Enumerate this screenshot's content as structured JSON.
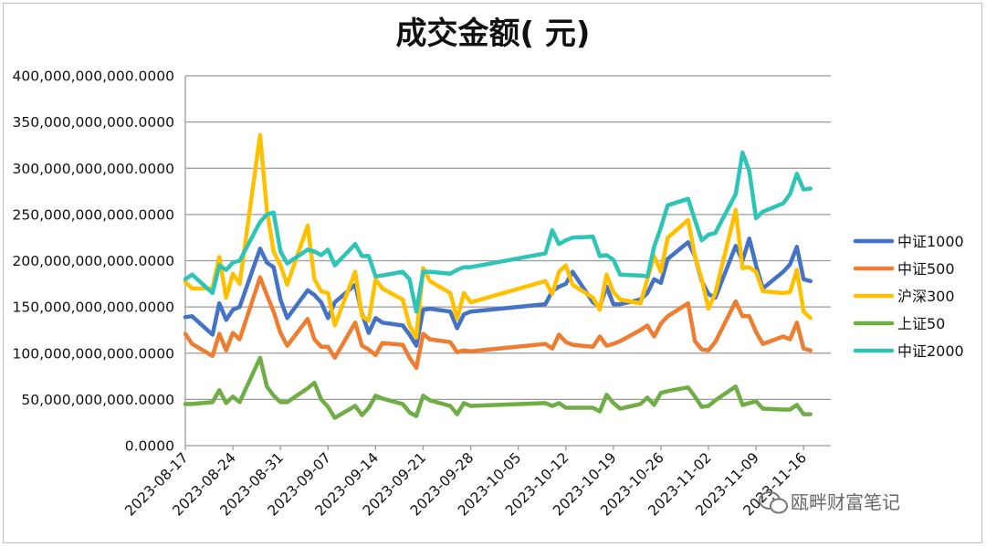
{
  "chart_data": {
    "type": "line",
    "title": "成交金额( 元)",
    "xlabel": "",
    "ylabel": "",
    "ylim": [
      0,
      400000000000
    ],
    "y_ticks": [
      0,
      50000000000,
      100000000000,
      150000000000,
      200000000000,
      250000000000,
      300000000000,
      350000000000,
      400000000000
    ],
    "y_tick_labels": [
      "0.0000",
      "50,000,000,000.0000",
      "100,000,000,000.0000",
      "150,000,000,000.0000",
      "200,000,000,000.0000",
      "250,000,000,000.0000",
      "300,000,000,000.0000",
      "350,000,000,000.0000",
      "400,000,000,000.0000"
    ],
    "xlim": [
      "2023-08-17",
      "2023-11-20"
    ],
    "x_ticks": [
      "2023-08-17",
      "2023-08-24",
      "2023-08-31",
      "2023-09-07",
      "2023-09-14",
      "2023-09-21",
      "2023-09-28",
      "2023-10-05",
      "2023-10-12",
      "2023-10-19",
      "2023-10-26",
      "2023-11-02",
      "2023-11-09",
      "2023-11-16"
    ],
    "grid": "horizontal",
    "legend_position": "right",
    "x": [
      "2023-08-17",
      "2023-08-18",
      "2023-08-21",
      "2023-08-22",
      "2023-08-23",
      "2023-08-24",
      "2023-08-25",
      "2023-08-28",
      "2023-08-29",
      "2023-08-30",
      "2023-08-31",
      "2023-09-01",
      "2023-09-04",
      "2023-09-05",
      "2023-09-06",
      "2023-09-07",
      "2023-09-08",
      "2023-09-11",
      "2023-09-12",
      "2023-09-13",
      "2023-09-14",
      "2023-09-15",
      "2023-09-18",
      "2023-09-19",
      "2023-09-20",
      "2023-09-21",
      "2023-09-22",
      "2023-09-25",
      "2023-09-26",
      "2023-09-27",
      "2023-09-28",
      "2023-10-09",
      "2023-10-10",
      "2023-10-11",
      "2023-10-12",
      "2023-10-13",
      "2023-10-16",
      "2023-10-17",
      "2023-10-18",
      "2023-10-19",
      "2023-10-20",
      "2023-10-23",
      "2023-10-24",
      "2023-10-25",
      "2023-10-26",
      "2023-10-27",
      "2023-10-30",
      "2023-10-31",
      "2023-11-01",
      "2023-11-02",
      "2023-11-03",
      "2023-11-06",
      "2023-11-07",
      "2023-11-08",
      "2023-11-09",
      "2023-11-10",
      "2023-11-13",
      "2023-11-14",
      "2023-11-15",
      "2023-11-16",
      "2023-11-17"
    ],
    "series": [
      {
        "name": "中证1000",
        "color": "#4472C4",
        "values": [
          139,
          140,
          120,
          154,
          136,
          147,
          150,
          213,
          198,
          193,
          158,
          138,
          168,
          163,
          155,
          138,
          155,
          174,
          143,
          122,
          138,
          133,
          130,
          120,
          108,
          147,
          148,
          145,
          127,
          142,
          145,
          153,
          167,
          172,
          175,
          188,
          155,
          150,
          172,
          153,
          153,
          158,
          165,
          180,
          176,
          202,
          220,
          205,
          178,
          164,
          160,
          216,
          200,
          224,
          195,
          170,
          188,
          196,
          215,
          180,
          178
        ]
      },
      {
        "name": "中证500",
        "color": "#ED7D31",
        "values": [
          121,
          110,
          97,
          121,
          103,
          122,
          115,
          182,
          163,
          145,
          122,
          108,
          137,
          115,
          107,
          107,
          95,
          133,
          108,
          104,
          98,
          111,
          109,
          95,
          84,
          121,
          115,
          112,
          101,
          103,
          102,
          110,
          105,
          120,
          112,
          109,
          107,
          118,
          108,
          110,
          113,
          125,
          130,
          118,
          132,
          140,
          154,
          113,
          104,
          103,
          112,
          156,
          140,
          140,
          123,
          110,
          118,
          115,
          133,
          105,
          103
        ]
      },
      {
        "name": "沪深300",
        "color": "#FFC000",
        "values": [
          177,
          170,
          170,
          204,
          160,
          186,
          175,
          336,
          255,
          210,
          195,
          174,
          238,
          180,
          167,
          165,
          130,
          188,
          140,
          135,
          180,
          170,
          158,
          130,
          117,
          192,
          178,
          165,
          137,
          165,
          155,
          178,
          164,
          188,
          195,
          174,
          160,
          147,
          185,
          166,
          158,
          154,
          180,
          205,
          188,
          225,
          244,
          205,
          180,
          148,
          165,
          255,
          192,
          193,
          188,
          167,
          165,
          166,
          190,
          145,
          138
        ]
      },
      {
        "name": "上证50",
        "color": "#70AD47",
        "values": [
          45,
          45,
          47,
          60,
          46,
          53,
          47,
          95,
          64,
          54,
          47,
          47,
          62,
          68,
          50,
          42,
          30,
          43,
          33,
          41,
          54,
          51,
          45,
          36,
          32,
          54,
          49,
          43,
          34,
          46,
          43,
          46,
          43,
          46,
          41,
          41,
          41,
          37,
          55,
          46,
          40,
          45,
          52,
          44,
          57,
          59,
          63,
          53,
          42,
          43,
          49,
          64,
          44,
          46,
          48,
          40,
          39,
          39,
          44,
          34,
          34
        ]
      },
      {
        "name": "中证2000",
        "color": "#2EC4B6",
        "values": [
          180,
          185,
          165,
          195,
          190,
          198,
          200,
          242,
          250,
          252,
          210,
          197,
          212,
          210,
          206,
          212,
          195,
          218,
          205,
          205,
          183,
          184,
          188,
          180,
          145,
          188,
          188,
          186,
          190,
          193,
          193,
          208,
          233,
          218,
          222,
          225,
          226,
          205,
          206,
          201,
          185,
          184,
          183,
          215,
          236,
          260,
          267,
          244,
          222,
          228,
          230,
          272,
          317,
          297,
          246,
          253,
          262,
          272,
          294,
          277,
          278
        ]
      }
    ]
  },
  "legend": {
    "items": [
      "中证1000",
      "中证500",
      "沪深300",
      "上证50",
      "中证2000"
    ]
  },
  "watermark": {
    "text": "瓯畔财富笔记",
    "icon": "wechat-icon"
  }
}
